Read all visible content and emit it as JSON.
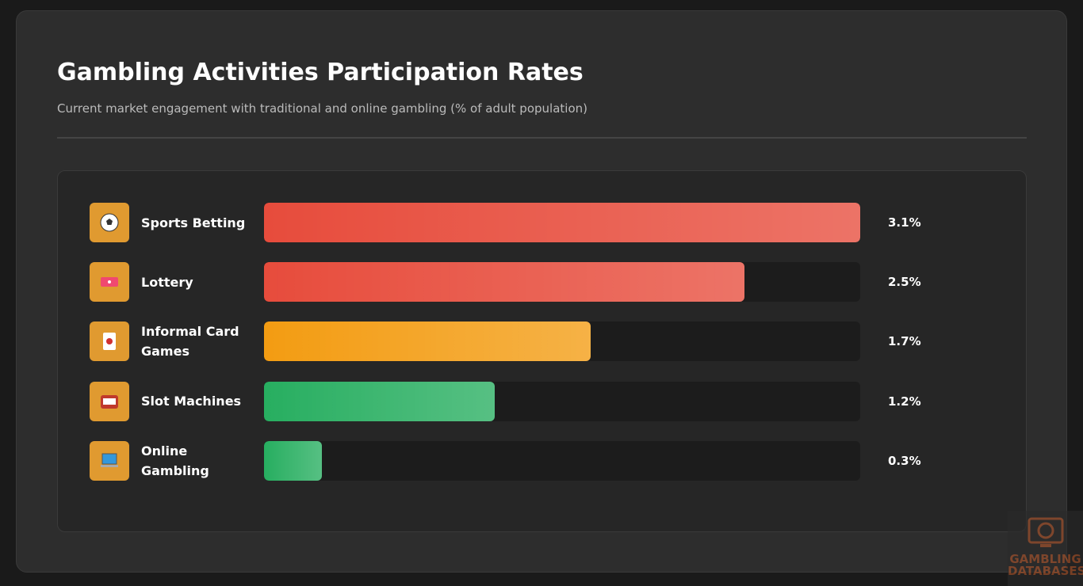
{
  "chart_data": {
    "type": "hbar",
    "title": "Gambling Activities Participation Rates",
    "subtitle": "Current market engagement with traditional and online gambling (% of adult population)",
    "categories": [
      "Sports Betting",
      "Lottery",
      "Informal Card Games",
      "Slot Machines",
      "Online Gambling"
    ],
    "values": [
      3.1,
      2.5,
      1.7,
      1.2,
      0.3
    ],
    "value_labels": [
      "3.1%",
      "2.5%",
      "1.7%",
      "1.2%",
      "0.3%"
    ],
    "colors": [
      "#e74c3c",
      "#e74c3c",
      "#f39c12",
      "#27ae60",
      "#27ae60"
    ]
  },
  "watermark": {
    "line1": "GAMBLING",
    "line2": "DATABASES"
  }
}
